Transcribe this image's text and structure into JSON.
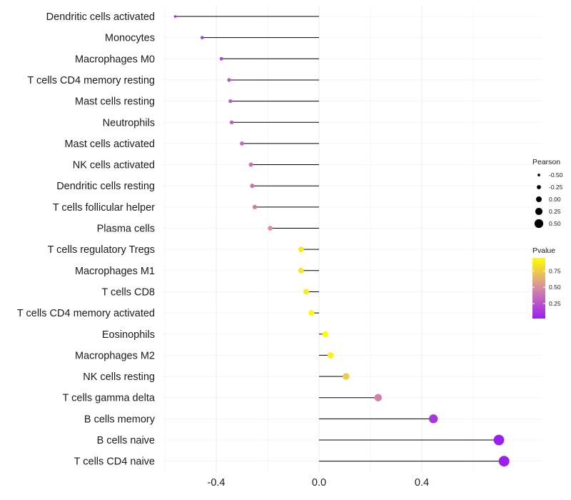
{
  "chart_data": {
    "type": "lollipop",
    "x_ticks": [
      -0.4,
      0.0,
      0.4
    ],
    "x_tick_labels": [
      "-0.4",
      "0.0",
      "0.4"
    ],
    "xlim": [
      -0.6,
      0.73
    ],
    "baseline": 0,
    "points": [
      {
        "label": "Dendritic cells activated",
        "value": -0.56,
        "pvalue": 0.02
      },
      {
        "label": "Monocytes",
        "value": -0.455,
        "pvalue": 0.06
      },
      {
        "label": "Macrophages M0",
        "value": -0.38,
        "pvalue": 0.2
      },
      {
        "label": "T cells CD4 memory resting",
        "value": -0.35,
        "pvalue": 0.25
      },
      {
        "label": "Mast cells resting",
        "value": -0.345,
        "pvalue": 0.27
      },
      {
        "label": "Neutrophils",
        "value": -0.34,
        "pvalue": 0.28
      },
      {
        "label": "Mast cells activated",
        "value": -0.3,
        "pvalue": 0.33
      },
      {
        "label": "NK cells activated",
        "value": -0.265,
        "pvalue": 0.38
      },
      {
        "label": "Dendritic cells resting",
        "value": -0.26,
        "pvalue": 0.39
      },
      {
        "label": "T cells follicular helper",
        "value": -0.25,
        "pvalue": 0.41
      },
      {
        "label": "Plasma cells",
        "value": -0.19,
        "pvalue": 0.52
      },
      {
        "label": "T cells regulatory  Tregs ",
        "value": -0.07,
        "pvalue": 0.86
      },
      {
        "label": "Macrophages M1",
        "value": -0.07,
        "pvalue": 0.86
      },
      {
        "label": "T cells CD8",
        "value": -0.05,
        "pvalue": 0.88
      },
      {
        "label": "T cells CD4 memory activated",
        "value": -0.03,
        "pvalue": 0.93
      },
      {
        "label": "Eosinophils",
        "value": 0.025,
        "pvalue": 0.95
      },
      {
        "label": "Macrophages M2",
        "value": 0.045,
        "pvalue": 0.9
      },
      {
        "label": "NK cells resting",
        "value": 0.105,
        "pvalue": 0.75
      },
      {
        "label": "T cells gamma delta",
        "value": 0.23,
        "pvalue": 0.45
      },
      {
        "label": "B cells memory",
        "value": 0.445,
        "pvalue": 0.12
      },
      {
        "label": "B cells naive",
        "value": 0.7,
        "pvalue": 0.02
      },
      {
        "label": "T cells CD4 naive",
        "value": 0.72,
        "pvalue": 0.01
      }
    ],
    "legend_size": {
      "title": "Pearson",
      "breaks": [
        -0.5,
        -0.25,
        0.0,
        0.25,
        0.5
      ],
      "labels": [
        "-0.50",
        "-0.25",
        "0.00",
        "0.25",
        "0.50"
      ]
    },
    "legend_color": {
      "title": "Pvalue",
      "range": [
        0.02,
        0.95
      ],
      "breaks": [
        0.25,
        0.5,
        0.75
      ],
      "labels": [
        "0.25",
        "0.50",
        "0.75"
      ],
      "low_color": "#9b1ff0",
      "mid_color": "#d58aa6",
      "high_color": "#ffff00"
    },
    "line_color": "#000000",
    "grid": true
  }
}
